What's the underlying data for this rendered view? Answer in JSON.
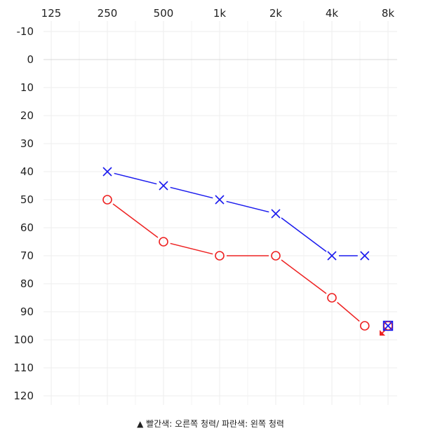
{
  "chart_data": {
    "type": "line",
    "x_axis": {
      "position": "top",
      "tick_labels": [
        "125",
        "250",
        "500",
        "1k",
        "2k",
        "4k",
        "8k"
      ],
      "tick_values": [
        125,
        250,
        500,
        1000,
        2000,
        4000,
        8000
      ],
      "scale": "log"
    },
    "y_axis": {
      "inverted": true,
      "range": [
        -10,
        120
      ],
      "ticks": [
        -10,
        0,
        10,
        20,
        30,
        40,
        50,
        60,
        70,
        80,
        90,
        100,
        110,
        120
      ]
    },
    "grid": true,
    "series": [
      {
        "marker": "o",
        "color": "#ee2222",
        "points": [
          {
            "x": 250,
            "y": 50
          },
          {
            "x": 500,
            "y": 65
          },
          {
            "x": 1000,
            "y": 70
          },
          {
            "x": 2000,
            "y": 70
          },
          {
            "x": 4000,
            "y": 85
          },
          {
            "x": 6000,
            "y": 95
          },
          {
            "x": 8000,
            "y": 95,
            "no_response_arrow": true
          }
        ]
      },
      {
        "marker": "x",
        "color": "#1a1aee",
        "points": [
          {
            "x": 250,
            "y": 40
          },
          {
            "x": 500,
            "y": 45
          },
          {
            "x": 1000,
            "y": 50
          },
          {
            "x": 2000,
            "y": 55
          },
          {
            "x": 4000,
            "y": 70
          },
          {
            "x": 6000,
            "y": 70
          },
          {
            "x": 8000,
            "y": 95,
            "boxed": true
          }
        ]
      }
    ],
    "caption": "▲ 빨간색: 오른쪽 청력/ 파란색: 왼쪽 청력"
  }
}
